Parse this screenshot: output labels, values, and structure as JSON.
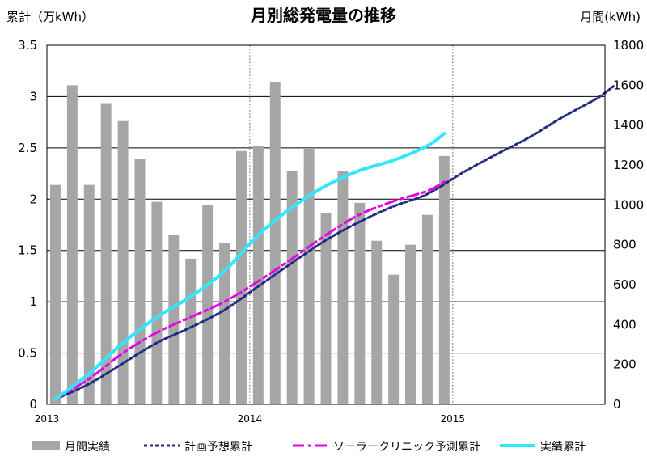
{
  "chart_data": {
    "type": "bar+line",
    "title": "月別総発電量の推移",
    "left_axis": {
      "label": "累計（万kWh）",
      "range": [
        0,
        3.5
      ],
      "ticks": [
        "0",
        "0.5",
        "1",
        "1.5",
        "2",
        "2.5",
        "3",
        "3.5"
      ]
    },
    "right_axis": {
      "label": "月間(kWh)",
      "range": [
        0,
        1800
      ],
      "ticks": [
        "0",
        "200",
        "400",
        "600",
        "800",
        "1000",
        "1200",
        "1400",
        "1600",
        "1800"
      ]
    },
    "x_axis": {
      "start": "2013-01",
      "end": "2015-10",
      "tick_labels": [
        "2013",
        "2014",
        "2015"
      ],
      "year_divider_months": [
        12,
        24
      ]
    },
    "grid": true,
    "legend_position": "bottom",
    "colors": {
      "monthly": "#a6a6a6",
      "plan": "#1f2a80",
      "solar_clinic": "#e600e6",
      "actual": "#33e6ff",
      "grid": "#000000",
      "divider": "#808080"
    },
    "series": [
      {
        "name": "月間実績",
        "kind": "bar",
        "axis": "right",
        "months": [
          "2013-01",
          "2013-02",
          "2013-03",
          "2013-04",
          "2013-05",
          "2013-06",
          "2013-07",
          "2013-08",
          "2013-09",
          "2013-10",
          "2013-11",
          "2013-12",
          "2014-01",
          "2014-02",
          "2014-03",
          "2014-04",
          "2014-05",
          "2014-06",
          "2014-07",
          "2014-08",
          "2014-09",
          "2014-10",
          "2014-11",
          "2014-12"
        ],
        "values": [
          1100,
          1600,
          1100,
          1510,
          1420,
          1230,
          1015,
          850,
          730,
          1000,
          810,
          1270,
          1295,
          1615,
          1170,
          1285,
          960,
          1170,
          1010,
          820,
          650,
          800,
          950,
          1245
        ]
      },
      {
        "name": "計画予想累計",
        "kind": "line",
        "style": "dotted",
        "axis": "left",
        "months": [
          "2013-01",
          "2013-03",
          "2013-05",
          "2013-07",
          "2013-09",
          "2013-11",
          "2014-01",
          "2014-03",
          "2014-05",
          "2014-07",
          "2014-09",
          "2014-11",
          "2015-01",
          "2015-03",
          "2015-05",
          "2015-07",
          "2015-09",
          "2015-10"
        ],
        "values": [
          0.05,
          0.2,
          0.4,
          0.6,
          0.75,
          0.92,
          1.15,
          1.38,
          1.6,
          1.78,
          1.93,
          2.05,
          2.25,
          2.43,
          2.6,
          2.8,
          2.98,
          3.1
        ]
      },
      {
        "name": "ソーラークリニック予測累計",
        "kind": "line",
        "style": "dash-dot",
        "axis": "left",
        "months": [
          "2013-01",
          "2013-03",
          "2013-05",
          "2013-07",
          "2013-09",
          "2013-11",
          "2014-01",
          "2014-03",
          "2014-05",
          "2014-07",
          "2014-09",
          "2014-11",
          "2014-12"
        ],
        "values": [
          0.05,
          0.25,
          0.5,
          0.7,
          0.85,
          1.0,
          1.2,
          1.42,
          1.65,
          1.85,
          1.98,
          2.08,
          2.17
        ]
      },
      {
        "name": "実績累計",
        "kind": "line",
        "style": "solid",
        "axis": "left",
        "months": [
          "2013-01",
          "2013-03",
          "2013-05",
          "2013-07",
          "2013-09",
          "2013-11",
          "2014-01",
          "2014-03",
          "2014-05",
          "2014-07",
          "2014-09",
          "2014-11",
          "2014-12"
        ],
        "values": [
          0.05,
          0.3,
          0.6,
          0.85,
          1.05,
          1.3,
          1.65,
          1.92,
          2.13,
          2.28,
          2.38,
          2.52,
          2.64
        ]
      }
    ]
  }
}
